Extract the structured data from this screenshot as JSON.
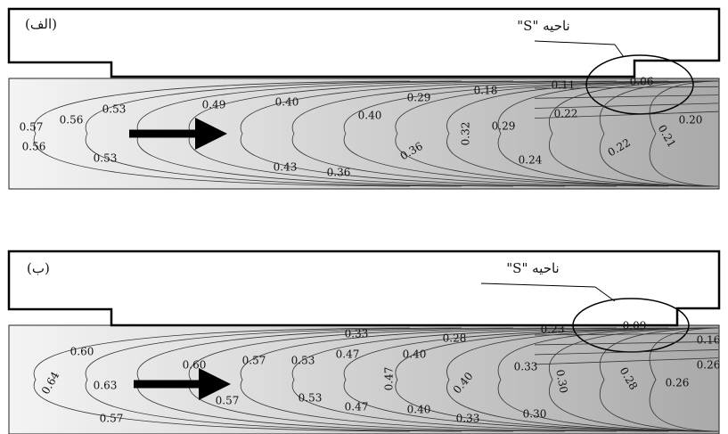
{
  "panels": [
    {
      "label": "(الف)",
      "region_label": "ناحیه \"S\"",
      "contour_labels": [
        "0.57",
        "0.56",
        "0.53",
        "0.49",
        "0.40",
        "0.29",
        "0.18",
        "0.11",
        "0.06",
        "0.22",
        "0.20",
        "0.40",
        "0.29",
        "0.32",
        "0.21",
        "0.22",
        "0.56",
        "0.53",
        "0.43",
        "0.36",
        "0.36",
        "0.24"
      ]
    },
    {
      "label": "(ب)",
      "region_label": "ناحیه \"S\"",
      "contour_labels": [
        "0.60",
        "0.64",
        "0.63",
        "0.60",
        "0.57",
        "0.53",
        "0.33",
        "0.47",
        "0.40",
        "0.28",
        "0.23",
        "0.09",
        "0.16",
        "0.26",
        "0.33",
        "0.30",
        "0.28",
        "0.26",
        "0.47",
        "0.40",
        "0.57",
        "0.53",
        "0.47",
        "0.40",
        "0.33",
        "0.30",
        "0.57"
      ]
    }
  ]
}
